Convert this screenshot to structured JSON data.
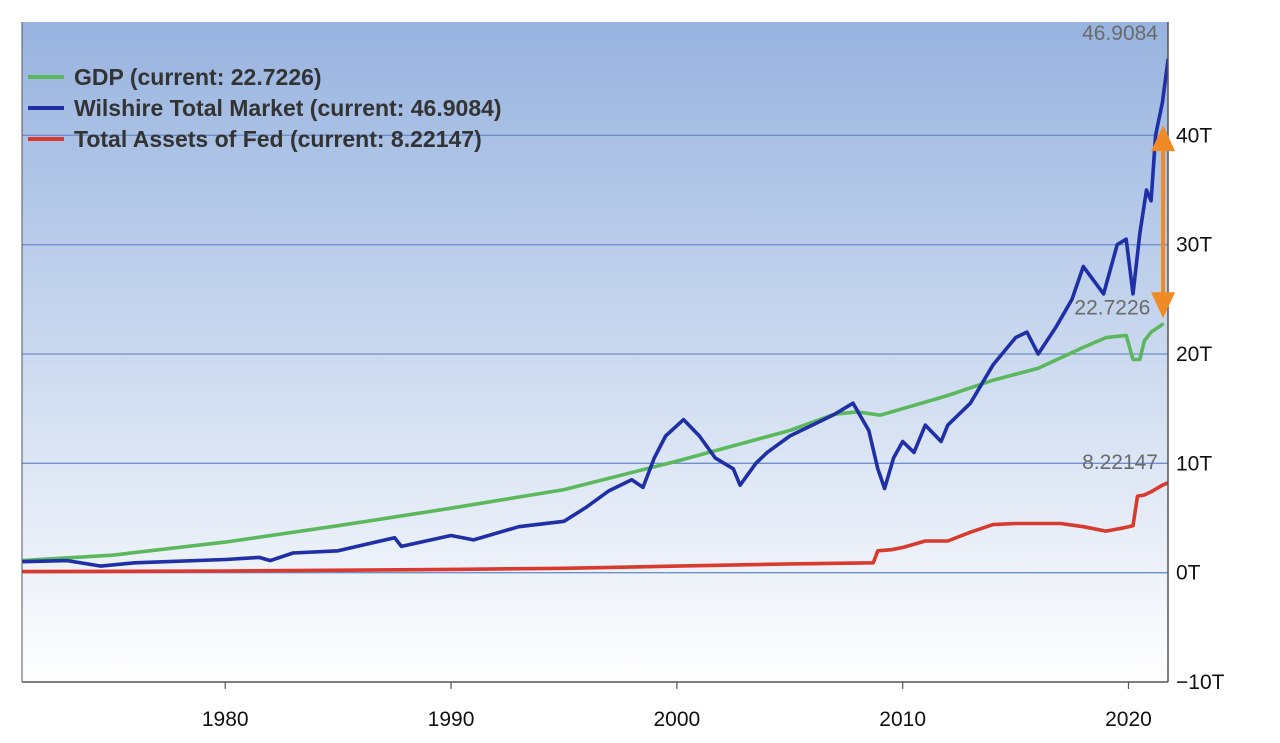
{
  "chart_data": {
    "type": "line",
    "title": "",
    "xlabel": "",
    "ylabel": "",
    "xlim": [
      1971,
      2021.75
    ],
    "ylim": [
      -10,
      50
    ],
    "grid": true,
    "legend_position": "top-left",
    "background_gradient": [
      "#97b3df",
      "#ffffff"
    ],
    "x_ticks": [
      1980,
      1990,
      2000,
      2010,
      2020
    ],
    "y_ticks": [
      {
        "value": 40,
        "label": "40T"
      },
      {
        "value": 30,
        "label": "30T"
      },
      {
        "value": 20,
        "label": "20T"
      },
      {
        "value": 10,
        "label": "10T"
      },
      {
        "value": 0,
        "label": "0T"
      },
      {
        "value": -10,
        "label": "−10T"
      }
    ],
    "series": [
      {
        "name": "GDP (current: 22.7226)",
        "color": "#5cb85c",
        "end_label": "22.7226",
        "points": [
          [
            1971,
            1.1
          ],
          [
            1975,
            1.6
          ],
          [
            1980,
            2.8
          ],
          [
            1985,
            4.3
          ],
          [
            1990,
            5.9
          ],
          [
            1995,
            7.6
          ],
          [
            2000,
            10.2
          ],
          [
            2005,
            13.0
          ],
          [
            2007,
            14.5
          ],
          [
            2008,
            14.7
          ],
          [
            2009,
            14.4
          ],
          [
            2010,
            15.0
          ],
          [
            2012,
            16.2
          ],
          [
            2014,
            17.6
          ],
          [
            2016,
            18.7
          ],
          [
            2018,
            20.6
          ],
          [
            2019,
            21.5
          ],
          [
            2019.9,
            21.7
          ],
          [
            2020.2,
            19.5
          ],
          [
            2020.5,
            19.5
          ],
          [
            2020.7,
            21.2
          ],
          [
            2021,
            22.0
          ],
          [
            2021.5,
            22.7
          ]
        ]
      },
      {
        "name": "Wilshire Total Market (current: 46.9084)",
        "color": "#1f2fa6",
        "end_label": "46.9084",
        "points": [
          [
            1971,
            1.0
          ],
          [
            1973,
            1.1
          ],
          [
            1974.5,
            0.6
          ],
          [
            1976,
            0.9
          ],
          [
            1980,
            1.2
          ],
          [
            1981.5,
            1.4
          ],
          [
            1982,
            1.1
          ],
          [
            1983,
            1.8
          ],
          [
            1985,
            2.0
          ],
          [
            1987.5,
            3.2
          ],
          [
            1987.8,
            2.4
          ],
          [
            1990,
            3.4
          ],
          [
            1991,
            3.0
          ],
          [
            1993,
            4.2
          ],
          [
            1995,
            4.7
          ],
          [
            1996,
            6.0
          ],
          [
            1997,
            7.5
          ],
          [
            1998,
            8.5
          ],
          [
            1998.5,
            7.8
          ],
          [
            1999,
            10.5
          ],
          [
            1999.5,
            12.5
          ],
          [
            2000.3,
            14.0
          ],
          [
            2001,
            12.5
          ],
          [
            2001.7,
            10.5
          ],
          [
            2002.5,
            9.5
          ],
          [
            2002.8,
            8.0
          ],
          [
            2003.5,
            10.0
          ],
          [
            2004,
            11.0
          ],
          [
            2005,
            12.5
          ],
          [
            2006,
            13.5
          ],
          [
            2007,
            14.5
          ],
          [
            2007.8,
            15.5
          ],
          [
            2008.5,
            13.0
          ],
          [
            2008.9,
            9.5
          ],
          [
            2009.2,
            7.7
          ],
          [
            2009.6,
            10.5
          ],
          [
            2010,
            12.0
          ],
          [
            2010.5,
            11.0
          ],
          [
            2011,
            13.5
          ],
          [
            2011.7,
            12.0
          ],
          [
            2012,
            13.5
          ],
          [
            2013,
            15.5
          ],
          [
            2014,
            19.0
          ],
          [
            2015,
            21.5
          ],
          [
            2015.5,
            22.0
          ],
          [
            2016,
            20.0
          ],
          [
            2016.8,
            22.5
          ],
          [
            2017.5,
            25.0
          ],
          [
            2018,
            28.0
          ],
          [
            2018.9,
            25.5
          ],
          [
            2019.5,
            30.0
          ],
          [
            2019.9,
            30.5
          ],
          [
            2020.2,
            25.5
          ],
          [
            2020.5,
            31.0
          ],
          [
            2020.8,
            35.0
          ],
          [
            2021,
            34.0
          ],
          [
            2021.2,
            40.0
          ],
          [
            2021.5,
            43.0
          ],
          [
            2021.75,
            46.9
          ]
        ]
      },
      {
        "name": "Total Assets of Fed (current: 8.22147)",
        "color": "#d93a2e",
        "end_label": "8.22147",
        "points": [
          [
            1971,
            0.1
          ],
          [
            1980,
            0.15
          ],
          [
            1990,
            0.3
          ],
          [
            1995,
            0.4
          ],
          [
            2000,
            0.6
          ],
          [
            2005,
            0.8
          ],
          [
            2008.7,
            0.9
          ],
          [
            2008.9,
            2.0
          ],
          [
            2009.5,
            2.1
          ],
          [
            2010,
            2.3
          ],
          [
            2011,
            2.9
          ],
          [
            2012,
            2.9
          ],
          [
            2013,
            3.7
          ],
          [
            2014,
            4.4
          ],
          [
            2015,
            4.5
          ],
          [
            2017,
            4.5
          ],
          [
            2018,
            4.2
          ],
          [
            2019,
            3.8
          ],
          [
            2019.8,
            4.1
          ],
          [
            2020.2,
            4.3
          ],
          [
            2020.4,
            7.0
          ],
          [
            2020.7,
            7.1
          ],
          [
            2021,
            7.4
          ],
          [
            2021.5,
            8.0
          ],
          [
            2021.75,
            8.22
          ]
        ]
      }
    ],
    "annotation": {
      "type": "double-arrow",
      "color": "#f08a24",
      "x": 2021.4,
      "from": 40.2,
      "to": 24.0
    }
  }
}
